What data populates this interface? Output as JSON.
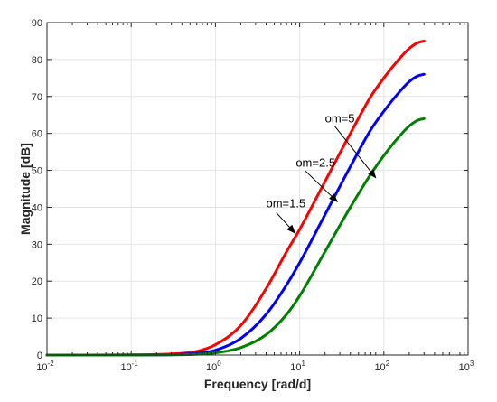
{
  "chart_data": {
    "type": "line",
    "xscale": "log",
    "xlim": [
      0.01,
      1000
    ],
    "ylim": [
      0,
      90
    ],
    "xlabel": "Frequency [rad/d]",
    "ylabel": "Magnitude [dB]",
    "grid": true,
    "xticks": [
      0.01,
      0.1,
      1,
      10,
      100,
      1000
    ],
    "xtick_labels": [
      {
        "base": "10",
        "exp": "-2"
      },
      {
        "base": "10",
        "exp": "-1"
      },
      {
        "base": "10",
        "exp": "0"
      },
      {
        "base": "10",
        "exp": "1"
      },
      {
        "base": "10",
        "exp": "2"
      },
      {
        "base": "10",
        "exp": "3"
      }
    ],
    "yticks": [
      0,
      10,
      20,
      30,
      40,
      50,
      60,
      70,
      80,
      90
    ],
    "ytick_labels": [
      "0",
      "10",
      "20",
      "30",
      "40",
      "50",
      "60",
      "70",
      "80",
      "90"
    ],
    "series": [
      {
        "color": "#ff0000",
        "x": [
          0.01,
          0.1,
          0.3,
          0.6,
          1,
          2,
          4,
          7,
          10,
          20,
          40,
          70,
          100,
          150,
          200,
          250,
          300
        ],
        "y": [
          0,
          0.05,
          0.3,
          1,
          2.8,
          8,
          18,
          28,
          34,
          47,
          60,
          70,
          75,
          80,
          83,
          84.5,
          85
        ]
      },
      {
        "color": "#0000ff",
        "x": [
          0.01,
          0.1,
          0.3,
          0.6,
          1,
          2,
          4,
          7,
          10,
          20,
          40,
          70,
          100,
          150,
          200,
          250,
          300
        ],
        "y": [
          0,
          0.02,
          0.1,
          0.5,
          1.3,
          4.5,
          11,
          19,
          25,
          38,
          51,
          61,
          66,
          71,
          74,
          75.5,
          76
        ]
      },
      {
        "color": "#008000",
        "x": [
          0.01,
          0.1,
          0.3,
          0.6,
          1,
          2,
          4,
          7,
          10,
          20,
          40,
          70,
          100,
          150,
          200,
          250,
          300
        ],
        "y": [
          0,
          0.01,
          0.05,
          0.2,
          0.6,
          2,
          5.5,
          11,
          16,
          28,
          40,
          49,
          54,
          59,
          62,
          63.5,
          64
        ]
      }
    ],
    "annotations": [
      {
        "text": "om=5",
        "text_xy": [
          20,
          63
        ],
        "arrow_from": [
          26,
          62
        ],
        "arrow_to": [
          80,
          48
        ]
      },
      {
        "text": "om=2.5",
        "text_xy": [
          9,
          51
        ],
        "arrow_from": [
          11.5,
          50
        ],
        "arrow_to": [
          28,
          41.5
        ]
      },
      {
        "text": "om=1.5",
        "text_xy": [
          4,
          40
        ],
        "arrow_from": [
          5.3,
          38.5
        ],
        "arrow_to": [
          8.8,
          33
        ]
      }
    ]
  }
}
